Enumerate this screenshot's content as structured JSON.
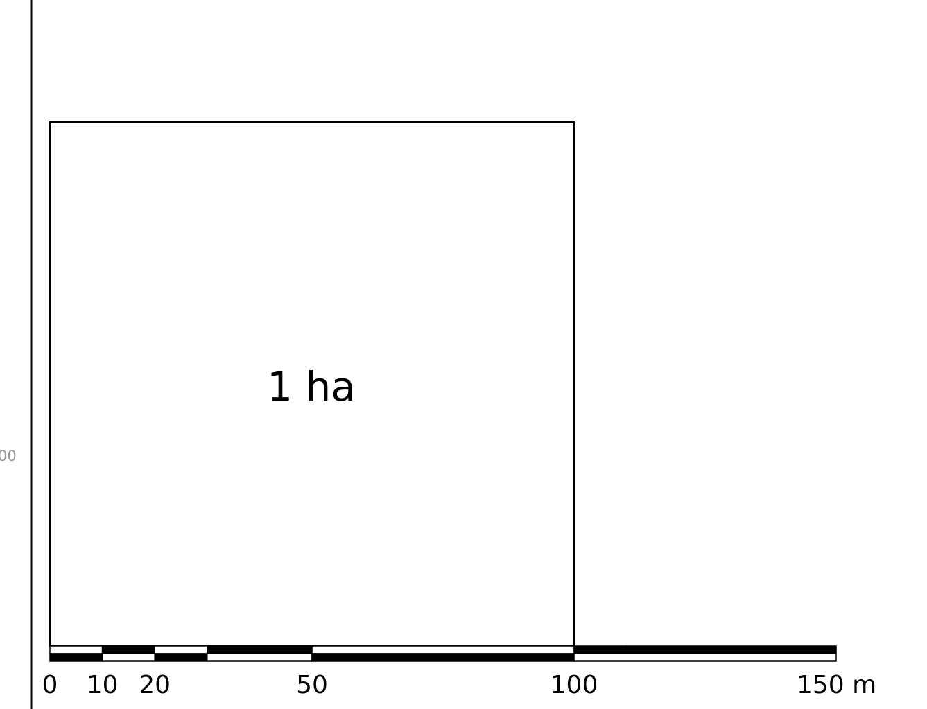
{
  "area_label": "1 ha",
  "edge_label": "00",
  "scale": {
    "unit": "m",
    "ticks": [
      {
        "value": 0,
        "label": "0"
      },
      {
        "value": 10,
        "label": "10"
      },
      {
        "value": 20,
        "label": "20"
      },
      {
        "value": 50,
        "label": "50"
      },
      {
        "value": 100,
        "label": "100"
      },
      {
        "value": 150,
        "label": "150 m"
      }
    ],
    "top_row": [
      [
        0,
        10,
        "white"
      ],
      [
        10,
        20,
        "black"
      ],
      [
        20,
        30,
        "white"
      ],
      [
        30,
        40,
        "black"
      ],
      [
        40,
        50,
        "black"
      ],
      [
        50,
        100,
        "white"
      ],
      [
        100,
        110,
        "black"
      ],
      [
        110,
        150,
        "black"
      ]
    ],
    "bottom_row": [
      [
        0,
        10,
        "black"
      ],
      [
        10,
        20,
        "white"
      ],
      [
        20,
        30,
        "black"
      ],
      [
        30,
        50,
        "white"
      ],
      [
        50,
        100,
        "black"
      ],
      [
        100,
        150,
        "white"
      ]
    ]
  },
  "square": {
    "side_m": 100
  }
}
